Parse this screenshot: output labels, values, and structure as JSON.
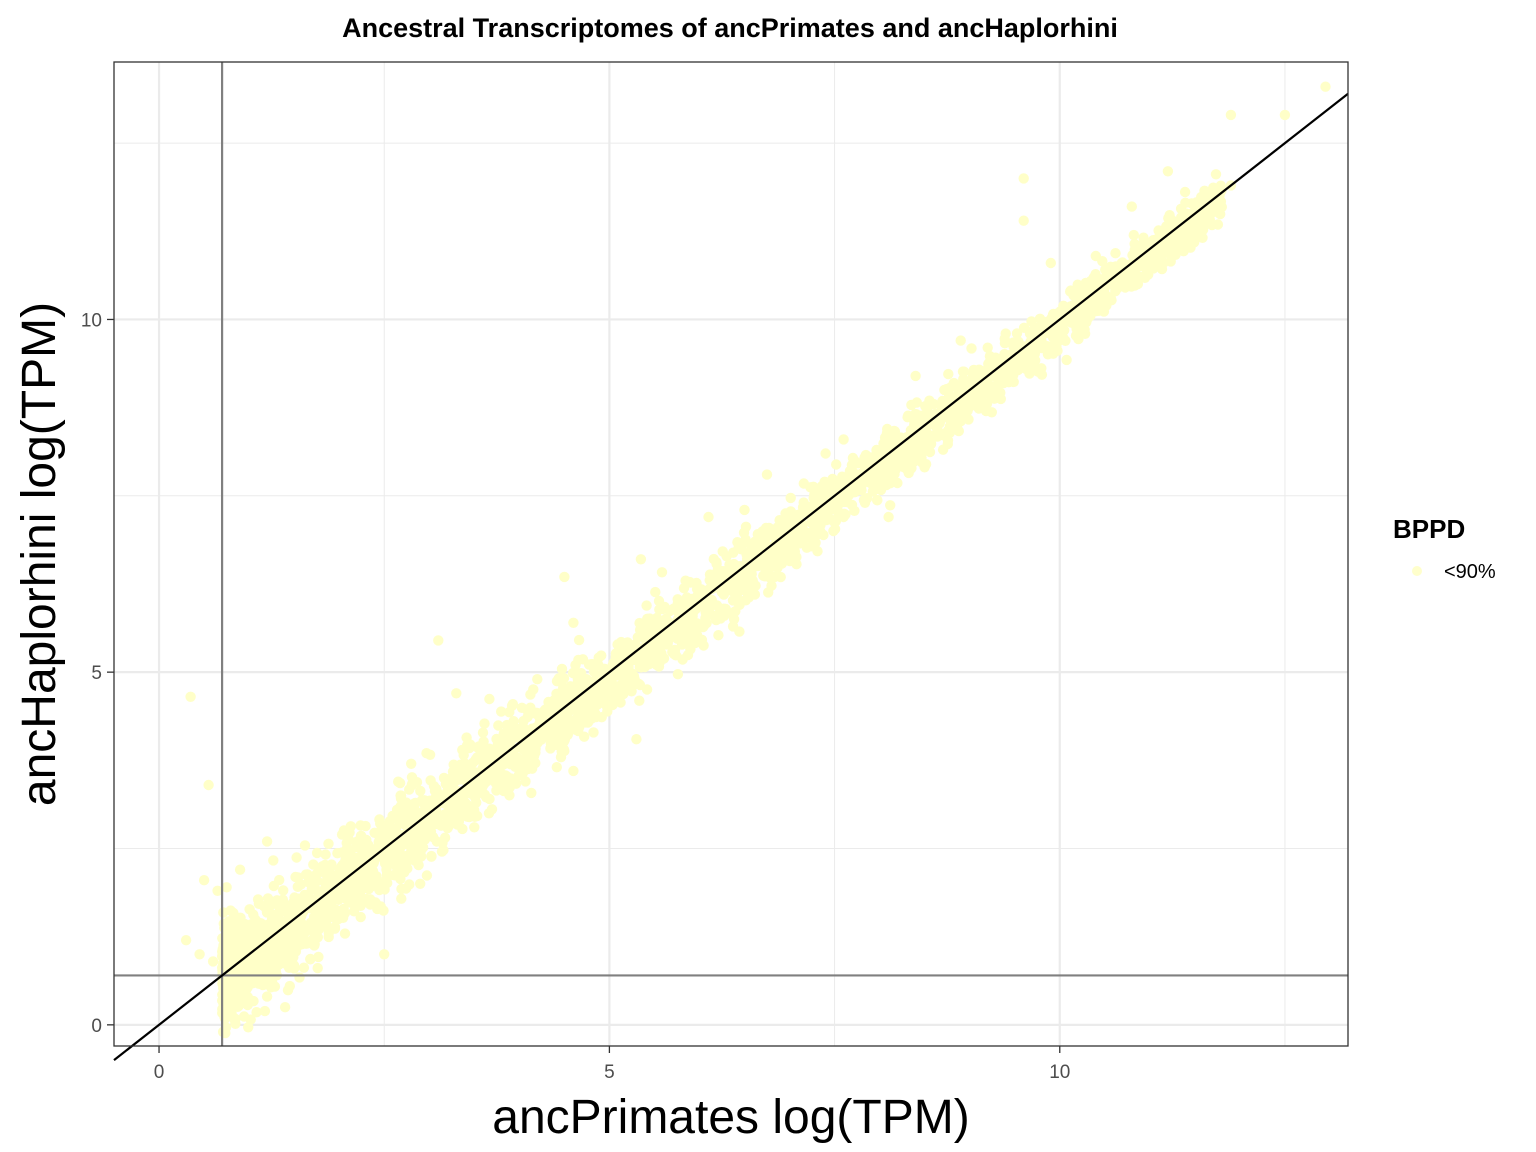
{
  "chart_data": {
    "type": "scatter",
    "title": "Ancestral Transcriptomes of ancPrimates and ancHaplorhini",
    "xlabel": "ancPrimates log(TPM)",
    "ylabel": "ancHaplorhini log(TPM)",
    "xlim": [
      -0.5,
      13.2
    ],
    "ylim": [
      -0.3,
      13.65
    ],
    "x_ticks": [
      0,
      5,
      10
    ],
    "y_ticks": [
      0,
      5,
      10
    ],
    "x_tick_labels": [
      "0",
      "5",
      "10"
    ],
    "y_tick_labels": [
      "0",
      "5",
      "10"
    ],
    "grid": true,
    "reference_lines": {
      "identity_line": {
        "slope": 1,
        "intercept": 0
      },
      "vline_x": 0.7,
      "hline_y": 0.7
    },
    "legend": {
      "title": "BPPD",
      "position": "right",
      "entries": [
        {
          "label": "<90%",
          "color": "#ffffcc"
        }
      ]
    },
    "colors": {
      "points": "#ffffc8",
      "identity_line": "#000000",
      "threshold_lines": "#808080",
      "grid": "#ebebeb",
      "panel_border": "#333333"
    },
    "series": [
      {
        "name": "<90%",
        "points": [
          [
            0.35,
            4.65
          ],
          [
            0.55,
            3.4
          ],
          [
            0.3,
            1.2
          ],
          [
            0.5,
            2.05
          ],
          [
            0.65,
            1.9
          ],
          [
            0.45,
            1.0
          ],
          [
            0.6,
            0.9
          ],
          [
            0.75,
            1.95
          ],
          [
            1.2,
            0.4
          ],
          [
            1.4,
            0.25
          ],
          [
            0.9,
            2.2
          ],
          [
            1.2,
            2.6
          ],
          [
            1.5,
            0.8
          ],
          [
            2.5,
            1.0
          ],
          [
            3.1,
            5.45
          ],
          [
            3.3,
            4.7
          ],
          [
            2.8,
            3.7
          ],
          [
            3.5,
            2.8
          ],
          [
            2.9,
            2.0
          ],
          [
            4.2,
            4.9
          ],
          [
            4.6,
            3.6
          ],
          [
            4.6,
            5.7
          ],
          [
            4.5,
            6.35
          ],
          [
            5.35,
            6.6
          ],
          [
            5.3,
            4.05
          ],
          [
            6.1,
            7.2
          ],
          [
            6.75,
            7.8
          ],
          [
            6.5,
            7.3
          ],
          [
            7.6,
            8.3
          ],
          [
            7.4,
            8.1
          ],
          [
            7.6,
            7.2
          ],
          [
            8.1,
            7.2
          ],
          [
            8.6,
            8.8
          ],
          [
            9.4,
            9.8
          ],
          [
            9.2,
            9.6
          ],
          [
            9.9,
            10.8
          ],
          [
            10.4,
            10.9
          ],
          [
            9.6,
            11.4
          ],
          [
            10.3,
            10.4
          ],
          [
            9.6,
            12.0
          ],
          [
            10.8,
            11.6
          ],
          [
            11.2,
            12.1
          ],
          [
            11.5,
            11.6
          ],
          [
            11.9,
            11.9
          ],
          [
            12.5,
            12.9
          ],
          [
            12.95,
            13.3
          ],
          [
            11.9,
            12.9
          ],
          [
            10.5,
            10.5
          ],
          [
            8.9,
            9.7
          ],
          [
            8.4,
            9.2
          ]
        ],
        "band": {
          "x_range": [
            0.7,
            11.8
          ],
          "y_offset_std_low_x": 0.35,
          "y_offset_std_high_x": 0.15,
          "y_offset_bias": -0.08,
          "count": 3200
        }
      }
    ]
  }
}
